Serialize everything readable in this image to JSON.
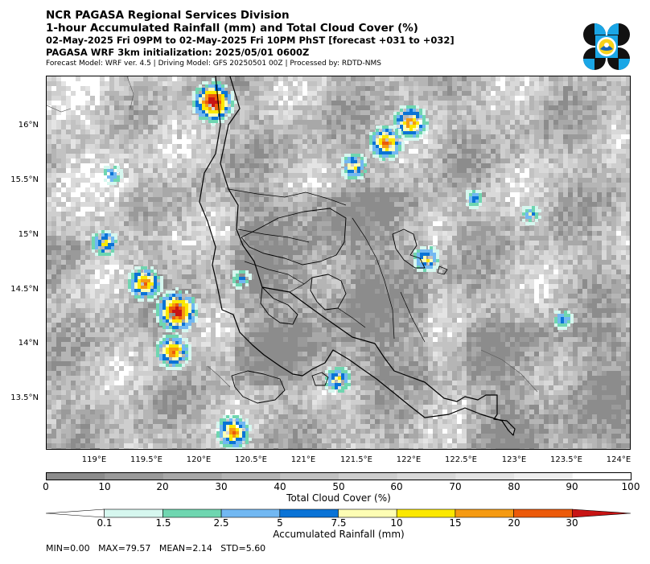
{
  "header": {
    "title_line1": "NCR PAGASA Regional Services Division",
    "title_line2": "1-hour Accumulated Rainfall (mm) and Total Cloud Cover (%)",
    "valid_time": "02-May-2025 Fri 09PM to 02-May-2025 Fri 10PM PhST [forecast +031 to +032]",
    "init": "PAGASA WRF 3km initialization: 2025/05/01 0600Z",
    "model_info": "Forecast Model: WRF ver. 4.5 | Driving Model: GFS 20250501 00Z | Processed by: RDTD-NMS"
  },
  "map": {
    "lat_ticks": [
      "16°N",
      "15.5°N",
      "15°N",
      "14.5°N",
      "14°N",
      "13.5°N"
    ],
    "lon_ticks": [
      "119°E",
      "119.5°E",
      "120°E",
      "120.5°E",
      "121°E",
      "121.5°E",
      "122°E",
      "122.5°E",
      "123°E",
      "123.5°E",
      "124°E"
    ],
    "extent": {
      "lon_min": 118.0,
      "lon_max": 124.0,
      "lat_min": 13.0,
      "lat_max": 16.45
    }
  },
  "cloud_colorbar": {
    "title": "Total Cloud Cover (%)",
    "ticks": [
      "0",
      "10",
      "20",
      "30",
      "40",
      "50",
      "60",
      "70",
      "80",
      "90",
      "100"
    ],
    "colors": [
      "#8c8c8c",
      "#9a9a9a",
      "#a8a8a8",
      "#b5b5b5",
      "#c2c2c2",
      "#cecece",
      "#d9d9d9",
      "#e4e4e4",
      "#eeeeee",
      "#ffffff"
    ]
  },
  "rain_colorbar": {
    "title": "Accumulated Rainfall (mm)",
    "ticks": [
      "0.1",
      "1.5",
      "2.5",
      "5",
      "7.5",
      "10",
      "15",
      "20",
      "30"
    ],
    "colors": [
      "#ffffff",
      "#d6f7ef",
      "#6fd6b0",
      "#72b8f2",
      "#0a73d6",
      "#fdfdb4",
      "#fbe800",
      "#f59a12",
      "#ec5a0a",
      "#c81414"
    ]
  },
  "stats": "MIN=0.00   MAX=79.57   MEAN=2.14   STD=5.60"
}
